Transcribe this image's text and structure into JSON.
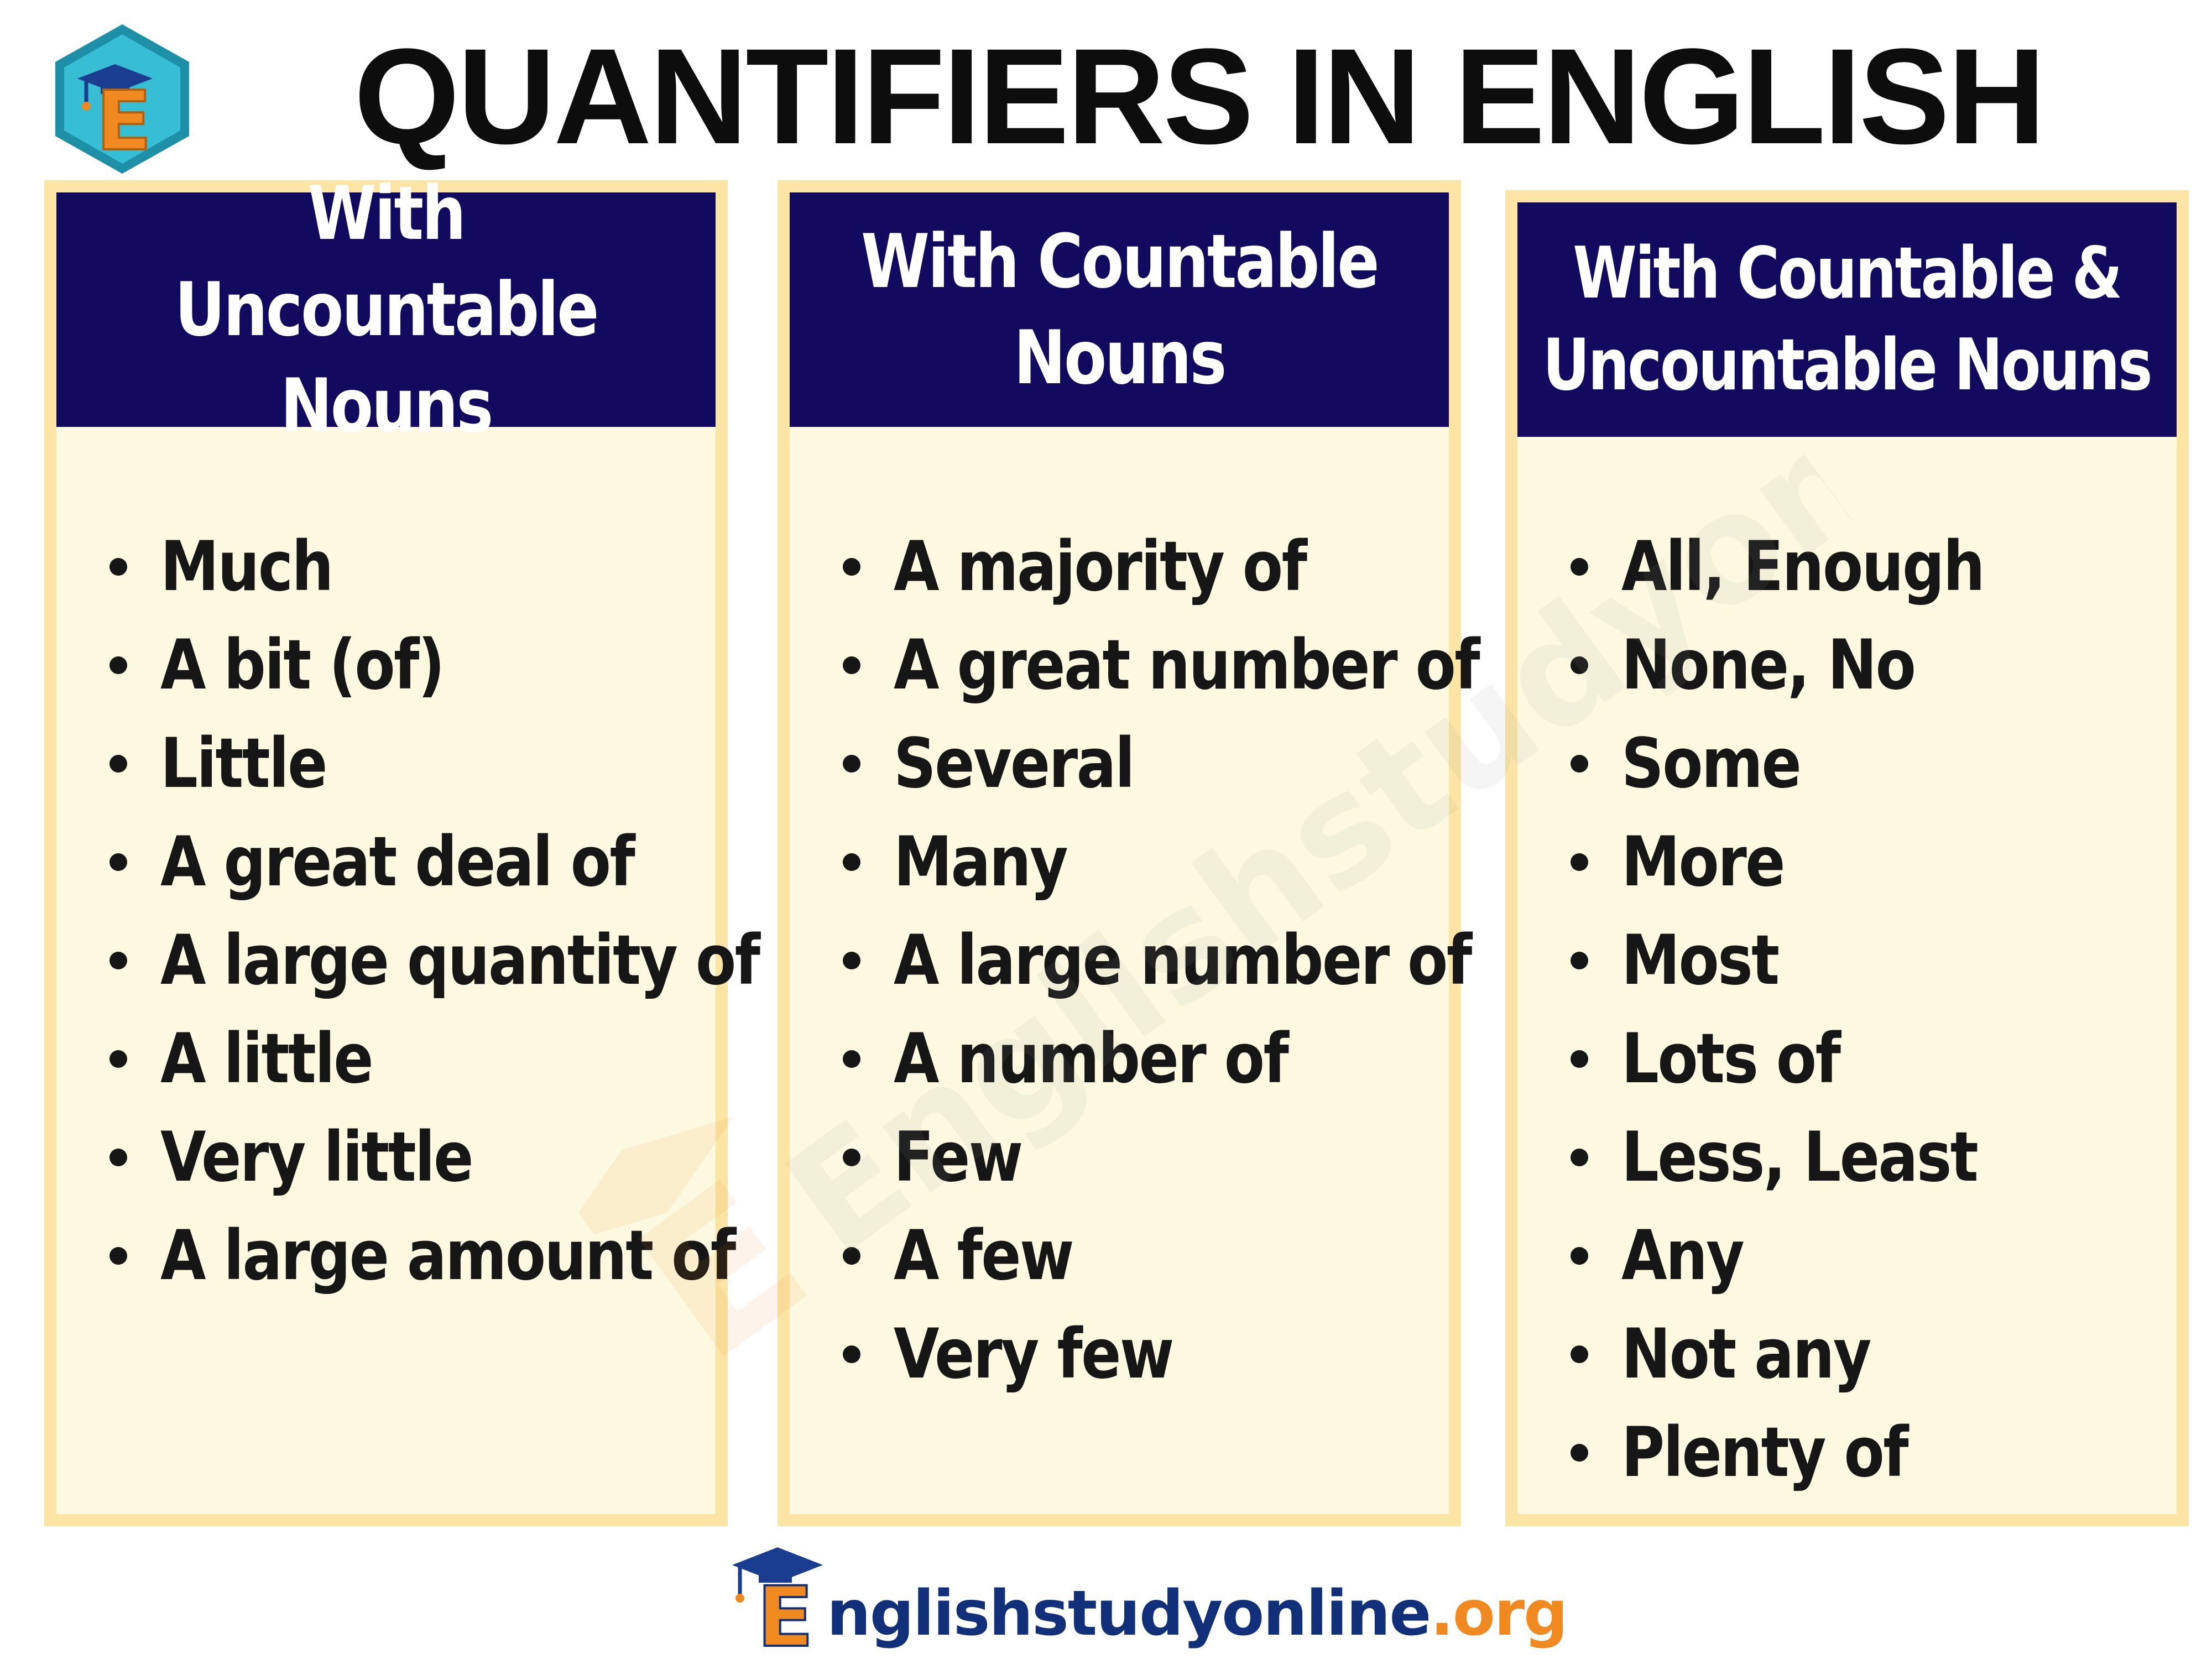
{
  "title": "QUANTIFIERS IN ENGLISH",
  "logo": {
    "icon": "graduation-cap-e-hexagon-icon",
    "letter": "E",
    "colors": {
      "hexagon": "#37bdd4",
      "hexagon_border": "#1d8fa6",
      "letter": "#f0891f",
      "cap": "#1a3d8f"
    }
  },
  "colors": {
    "header_bg": "#110a5e",
    "panel_bg": "#fcf9e0",
    "panel_border": "#fbe4a4",
    "text": "#161616",
    "brand_blue": "#12307a",
    "brand_orange": "#f0891f"
  },
  "panels": [
    {
      "heading_line1": "With Uncountable",
      "heading_line2": "Nouns",
      "items": [
        "Much",
        "A bit (of)",
        "Little",
        "A great deal of",
        "A large quantity of",
        "A little",
        "Very little",
        "A large amount of"
      ]
    },
    {
      "heading_line1": "With Countable",
      "heading_line2": "Nouns",
      "items": [
        "A majority of",
        "A great number of",
        "Several",
        "Many",
        "A large number of",
        "A number of",
        "Few",
        "A few",
        "Very few"
      ]
    },
    {
      "heading_line1": "With Countable &",
      "heading_line2": "Uncountable Nouns",
      "items": [
        "All, Enough",
        "None, No",
        "Some",
        "More",
        "Most",
        "Lots of",
        "Less, Least",
        "Any",
        "Not any",
        "Plenty of"
      ]
    }
  ],
  "watermark": {
    "text": "Englishstudyonline.org",
    "icon": "graduation-cap-e-icon"
  },
  "footer": {
    "brand_letter": "E",
    "brand_name": "nglishstudyonline",
    "brand_tld": ".org",
    "icon": "graduation-cap-e-icon"
  }
}
